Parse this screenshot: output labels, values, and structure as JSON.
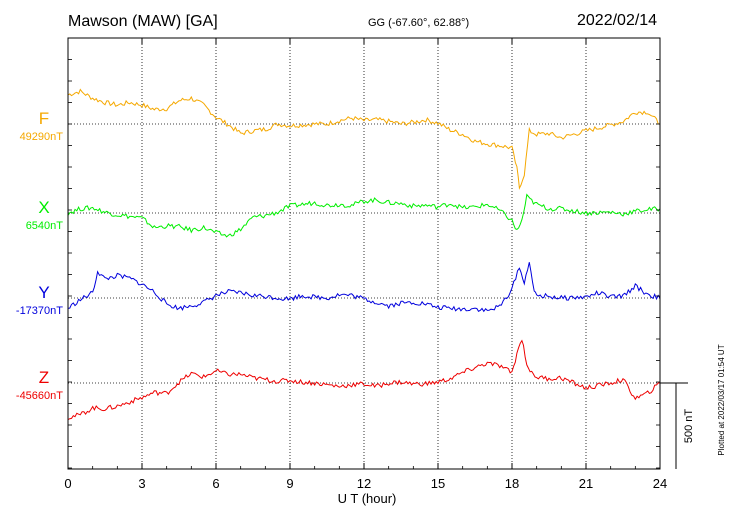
{
  "header": {
    "station": "Mawson (MAW)  [GA]",
    "coords": "GG (-67.60°,  62.88°)",
    "date": "2022/02/14"
  },
  "plotted_note": "Plotted at 2022/03/17 01:54 UT",
  "scale_label": "500 nT",
  "chart_data": {
    "type": "line",
    "xlabel": "U T (hour)",
    "xlim": [
      0,
      24
    ],
    "xticks": [
      "0",
      "3",
      "6",
      "9",
      "12",
      "15",
      "18",
      "21",
      "24"
    ],
    "y_units": "nT (500 nT scale bar)",
    "grid": true,
    "series": [
      {
        "name": "F",
        "baseline_label": "49290nT",
        "baseline_nT": 49290,
        "color": "#f5a800",
        "x": [
          0,
          0.5,
          1,
          1.5,
          2,
          2.5,
          3,
          3.5,
          4,
          4.5,
          5,
          5.5,
          6,
          6.5,
          7,
          7.5,
          8,
          8.5,
          9,
          9.5,
          10,
          10.5,
          11,
          11.5,
          12,
          12.5,
          13,
          13.5,
          14,
          14.5,
          15,
          15.5,
          16,
          16.5,
          17,
          17.5,
          18,
          18.2,
          18.3,
          18.5,
          18.7,
          19,
          19.5,
          20,
          21,
          22,
          22.5,
          23,
          23.5,
          24
        ],
        "values": [
          170,
          190,
          150,
          125,
          110,
          125,
          110,
          85,
          90,
          135,
          150,
          110,
          40,
          -5,
          -55,
          -40,
          -30,
          0,
          -10,
          -5,
          0,
          0,
          20,
          35,
          20,
          25,
          15,
          0,
          10,
          25,
          5,
          -35,
          -60,
          -100,
          -115,
          -125,
          -140,
          -260,
          -370,
          -290,
          -40,
          -60,
          -55,
          -80,
          -40,
          -5,
          15,
          70,
          70,
          0
        ]
      },
      {
        "name": "X",
        "baseline_label": "6540nT",
        "baseline_nT": 6540,
        "color": "#00ee00",
        "x": [
          0,
          0.5,
          1,
          1.5,
          2,
          2.5,
          3,
          3.5,
          4,
          4.5,
          5,
          5.5,
          6,
          6.5,
          7,
          7.5,
          8,
          8.5,
          9,
          9.5,
          10,
          10.5,
          11,
          11.5,
          12,
          12.5,
          13,
          13.5,
          14,
          14.5,
          15,
          15.5,
          16,
          16.5,
          17,
          17.5,
          18,
          18.2,
          18.4,
          18.6,
          18.8,
          19,
          19.5,
          20,
          21,
          22,
          22.5,
          23,
          23.5,
          24
        ],
        "values": [
          0,
          25,
          30,
          5,
          -10,
          -20,
          -30,
          -85,
          -75,
          -80,
          -100,
          -85,
          -115,
          -135,
          -95,
          -25,
          -15,
          5,
          40,
          50,
          60,
          45,
          50,
          45,
          70,
          75,
          60,
          55,
          40,
          45,
          35,
          55,
          30,
          35,
          50,
          15,
          -45,
          -105,
          -45,
          95,
          70,
          50,
          25,
          25,
          0,
          5,
          -5,
          10,
          20,
          25
        ]
      },
      {
        "name": "Y",
        "baseline_label": "-17370nT",
        "baseline_nT": -17370,
        "color": "#0000dd",
        "x": [
          0,
          0.5,
          1,
          1.2,
          1.5,
          2,
          2.5,
          3,
          3.5,
          4,
          4.5,
          5,
          5.5,
          6,
          6.5,
          7,
          7.5,
          8,
          8.5,
          9,
          9.5,
          10,
          10.5,
          11,
          11.5,
          12,
          12.5,
          13,
          13.5,
          14,
          14.5,
          15,
          15.5,
          16,
          16.5,
          17,
          17.5,
          18,
          18.3,
          18.5,
          18.7,
          18.9,
          19,
          19.5,
          20,
          21,
          21.5,
          22,
          22.5,
          23,
          23.5,
          24
        ],
        "values": [
          -60,
          -10,
          30,
          155,
          110,
          130,
          115,
          80,
          35,
          -35,
          -60,
          -45,
          -25,
          15,
          35,
          30,
          15,
          10,
          0,
          -5,
          15,
          5,
          0,
          20,
          15,
          -5,
          -25,
          -45,
          -30,
          -25,
          -35,
          -55,
          -60,
          -65,
          -60,
          -75,
          -50,
          50,
          185,
          80,
          220,
          30,
          15,
          10,
          0,
          5,
          30,
          5,
          10,
          70,
          20,
          0
        ]
      },
      {
        "name": "Z",
        "baseline_label": "-45660nT",
        "baseline_nT": -45660,
        "color": "#ee0000",
        "x": [
          0,
          0.5,
          1,
          1.5,
          2,
          2.5,
          3,
          3.5,
          4,
          4.5,
          5,
          5.5,
          6,
          6.5,
          7,
          7.5,
          8,
          8.5,
          9,
          9.5,
          10,
          10.5,
          11,
          11.5,
          12,
          12.5,
          13,
          13.5,
          14,
          14.5,
          15,
          15.5,
          16,
          16.5,
          17,
          17.5,
          18,
          18.2,
          18.4,
          18.6,
          18.8,
          19,
          19.5,
          20,
          21,
          22,
          22.5,
          23,
          23.5,
          24
        ],
        "values": [
          -200,
          -185,
          -145,
          -150,
          -135,
          -110,
          -85,
          -55,
          -60,
          5,
          55,
          35,
          70,
          50,
          50,
          30,
          20,
          10,
          15,
          5,
          0,
          -10,
          -20,
          -10,
          -5,
          -20,
          0,
          5,
          -5,
          -5,
          5,
          25,
          60,
          90,
          115,
          100,
          60,
          170,
          260,
          110,
          55,
          35,
          25,
          30,
          -30,
          0,
          20,
          -90,
          -60,
          0
        ]
      }
    ]
  }
}
